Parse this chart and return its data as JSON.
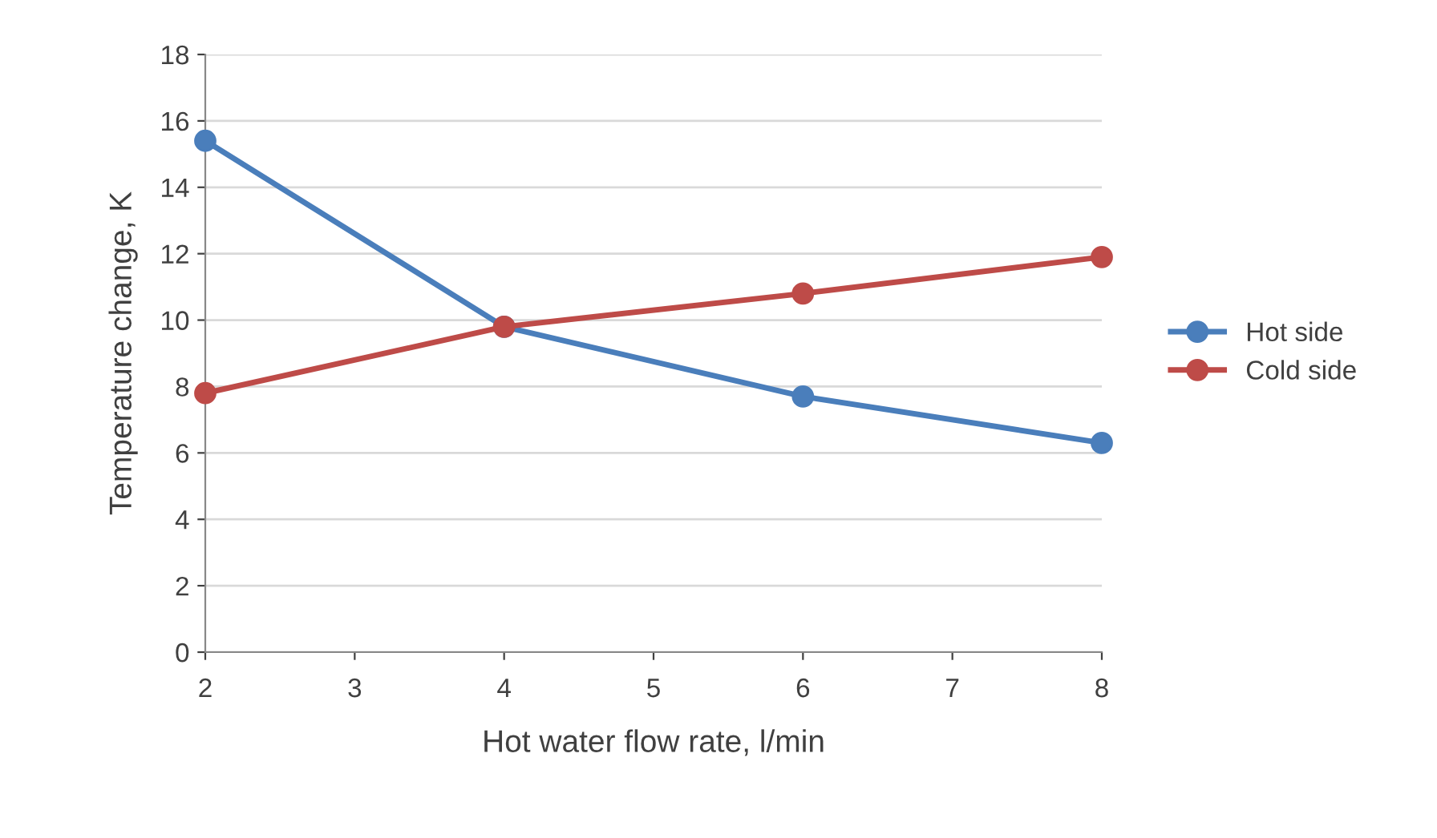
{
  "chart_data": {
    "type": "line",
    "xlabel": "Hot water flow rate, l/min",
    "ylabel": "Temperature change, K",
    "x": [
      2,
      4,
      6,
      8
    ],
    "series": [
      {
        "name": "Hot side",
        "color": "#4a7ebb",
        "values": [
          15.4,
          9.8,
          7.7,
          6.3
        ]
      },
      {
        "name": "Cold side",
        "color": "#be4b48",
        "values": [
          7.8,
          9.8,
          10.8,
          11.9
        ]
      }
    ],
    "xlim": [
      2,
      8
    ],
    "xticks": [
      2,
      3,
      4,
      5,
      6,
      7,
      8
    ],
    "ylim": [
      0,
      18
    ],
    "yticks": [
      0,
      2,
      4,
      6,
      8,
      10,
      12,
      14,
      16,
      18
    ],
    "grid": "y",
    "legend": "right",
    "marker": "circle",
    "line_style": "solid"
  }
}
